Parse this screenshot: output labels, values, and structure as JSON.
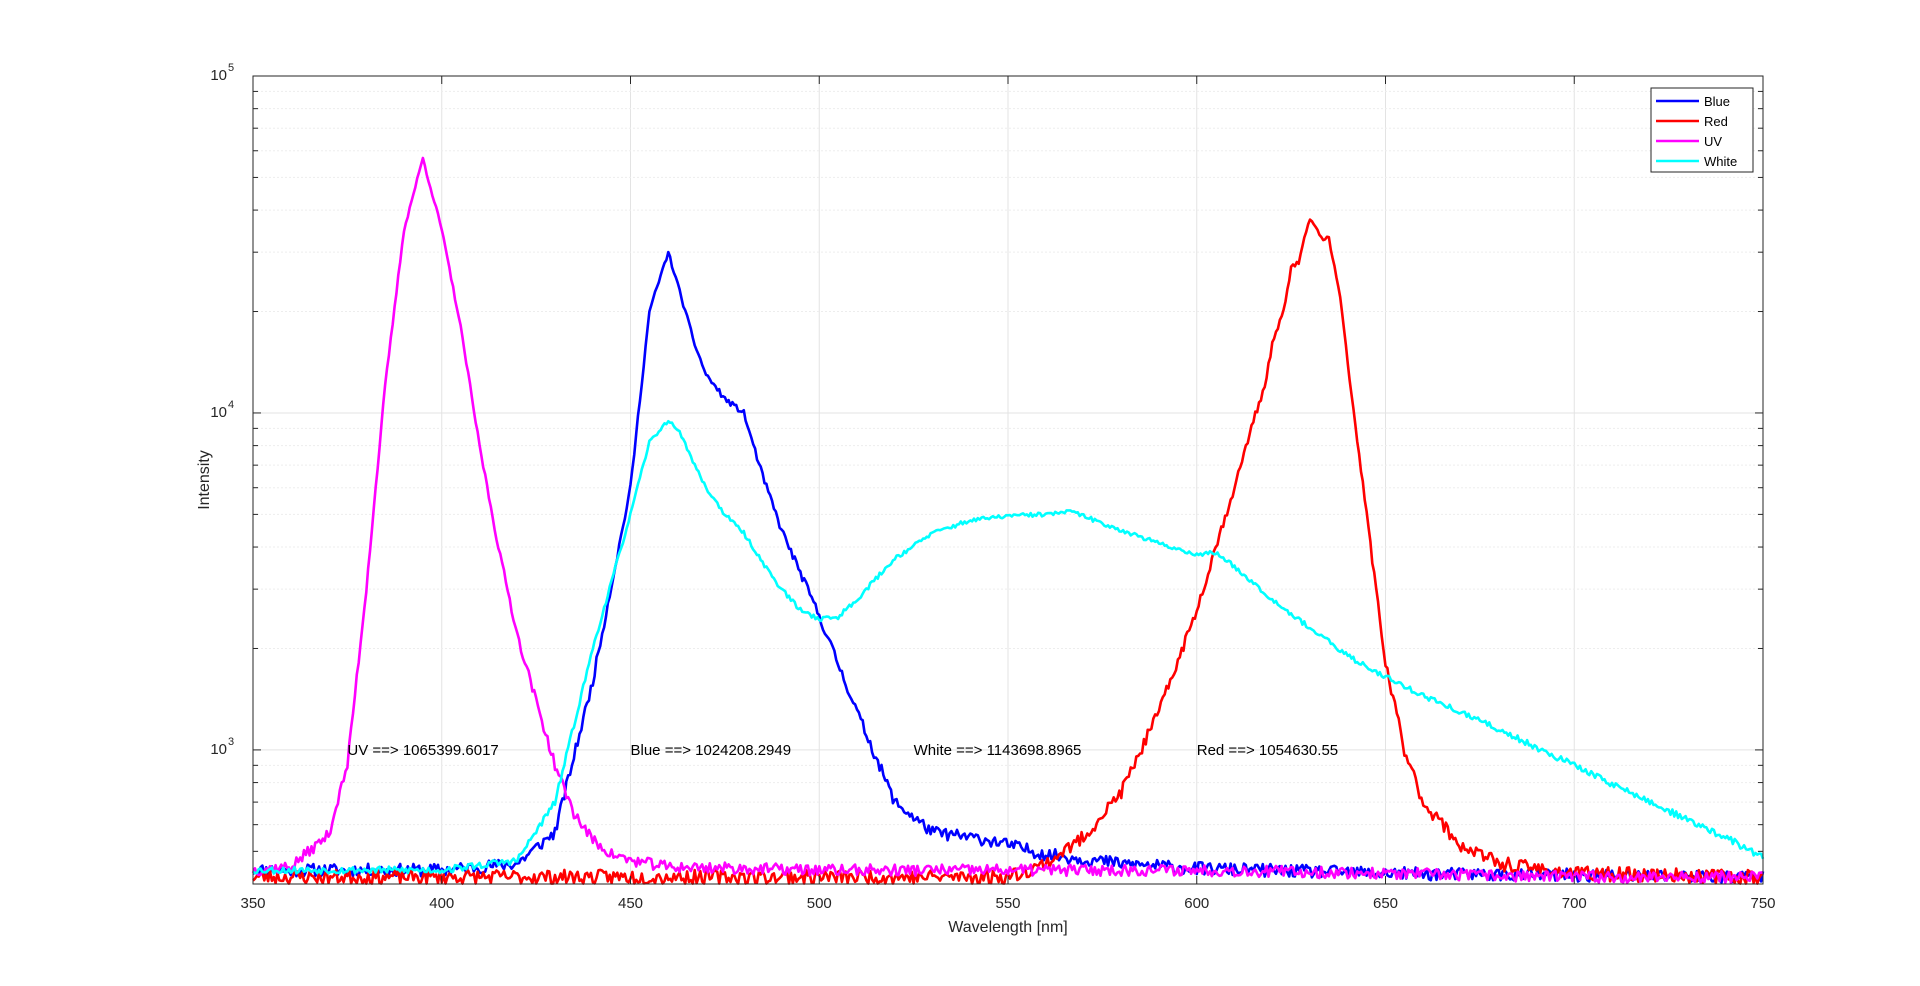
{
  "chart_data": {
    "type": "line",
    "xlabel": "Wavelength [nm]",
    "ylabel": "Intensity",
    "x_scale": "linear",
    "y_scale": "log",
    "xlim": [
      350,
      750
    ],
    "ylim": [
      400,
      100000
    ],
    "x_ticks": [
      "350",
      "400",
      "450",
      "500",
      "550",
      "600",
      "650",
      "700",
      "750"
    ],
    "y_ticks": [
      {
        "base": "10",
        "exp": "3",
        "value": 1000
      },
      {
        "base": "10",
        "exp": "4",
        "value": 10000
      },
      {
        "base": "10",
        "exp": "5",
        "value": 100000
      }
    ],
    "grid": true,
    "minor_grid": true,
    "legend_position": "top-right",
    "series": [
      {
        "name": "Blue",
        "color": "#0000ff",
        "noise": 0.045,
        "seed": 11,
        "x": [
          350,
          400,
          420,
          430,
          440,
          450,
          455,
          460,
          463,
          467,
          470,
          475,
          480,
          485,
          490,
          500,
          505,
          510,
          520,
          530,
          545,
          560,
          580,
          600,
          650,
          700,
          750
        ],
        "y": [
          440,
          440,
          460,
          570,
          1600,
          6000,
          20000,
          30000,
          23000,
          16000,
          13000,
          11000,
          10000,
          6500,
          4500,
          2500,
          1800,
          1300,
          700,
          570,
          540,
          490,
          460,
          445,
          430,
          425,
          420
        ]
      },
      {
        "name": "Red",
        "color": "#ff0000",
        "noise": 0.05,
        "seed": 23,
        "x": [
          350,
          550,
          560,
          570,
          580,
          590,
          600,
          605,
          610,
          615,
          618,
          620,
          623,
          625,
          627,
          630,
          633,
          635,
          638,
          640,
          645,
          650,
          655,
          660,
          670,
          680,
          700,
          750
        ],
        "y": [
          420,
          420,
          460,
          550,
          750,
          1300,
          2600,
          4000,
          6000,
          9500,
          12000,
          16000,
          20000,
          27000,
          28000,
          38000,
          33000,
          33000,
          22000,
          14000,
          5000,
          1800,
          1000,
          700,
          520,
          460,
          430,
          420
        ]
      },
      {
        "name": "UV",
        "color": "#ff00ff",
        "noise": 0.04,
        "seed": 37,
        "x": [
          350,
          360,
          370,
          375,
          380,
          385,
          390,
          395,
          400,
          405,
          410,
          415,
          420,
          425,
          430,
          435,
          440,
          445,
          450,
          460,
          500,
          550,
          600,
          650,
          700,
          750
        ],
        "y": [
          440,
          450,
          560,
          900,
          3000,
          12000,
          35000,
          57000,
          35000,
          18000,
          8000,
          4000,
          2200,
          1400,
          900,
          650,
          540,
          490,
          470,
          450,
          440,
          440,
          440,
          430,
          420,
          420
        ]
      },
      {
        "name": "White",
        "color": "#00ffff",
        "noise": 0.025,
        "seed": 53,
        "x": [
          350,
          400,
          420,
          430,
          440,
          450,
          455,
          460,
          463,
          467,
          470,
          475,
          480,
          485,
          490,
          495,
          500,
          505,
          510,
          520,
          530,
          540,
          550,
          560,
          567,
          575,
          590,
          600,
          605,
          610,
          620,
          630,
          640,
          650,
          660,
          680,
          700,
          720,
          740,
          750
        ],
        "y": [
          440,
          440,
          470,
          700,
          2000,
          5000,
          8200,
          9500,
          8800,
          7000,
          6000,
          5000,
          4400,
          3600,
          3000,
          2600,
          2450,
          2480,
          2800,
          3700,
          4400,
          4800,
          4950,
          5000,
          5100,
          4700,
          4100,
          3800,
          3850,
          3500,
          2800,
          2300,
          1900,
          1650,
          1450,
          1150,
          900,
          700,
          550,
          480
        ]
      }
    ],
    "annotations": [
      {
        "text": "UV ==> 1065399.6017",
        "x": 375,
        "y": 1000
      },
      {
        "text": "Blue ==> 1024208.2949",
        "x": 450,
        "y": 1000
      },
      {
        "text": "White ==> 1143698.8965",
        "x": 525,
        "y": 1000
      },
      {
        "text": "Red ==> 1054630.55",
        "x": 600,
        "y": 1000
      }
    ]
  }
}
